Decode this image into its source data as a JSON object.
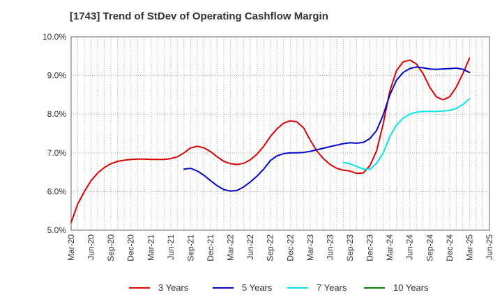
{
  "title": "[1743]  Trend of StDev of Operating Cashflow Margin",
  "chart_data": {
    "type": "line",
    "title": "[1743]  Trend of StDev of Operating Cashflow Margin",
    "xlabel": "",
    "ylabel": "",
    "x_ticks": [
      "Mar-20",
      "Jun-20",
      "Sep-20",
      "Dec-20",
      "Mar-21",
      "Jun-21",
      "Sep-21",
      "Dec-21",
      "Mar-22",
      "Jun-22",
      "Sep-22",
      "Dec-22",
      "Mar-23",
      "Jun-23",
      "Sep-23",
      "Dec-23",
      "Mar-24",
      "Jun-24",
      "Sep-24",
      "Dec-24",
      "Mar-25",
      "Jun-25"
    ],
    "y_ticks": [
      "5.0%",
      "6.0%",
      "7.0%",
      "8.0%",
      "9.0%",
      "10.0%"
    ],
    "ylim": [
      5.0,
      10.0
    ],
    "grid": true,
    "legend_position": "bottom",
    "series": [
      {
        "name": "3 Years",
        "color": "#dd0000",
        "points": [
          [
            "Mar-20",
            5.2
          ],
          [
            "Apr-20",
            5.68
          ],
          [
            "May-20",
            6.0
          ],
          [
            "Jun-20",
            6.28
          ],
          [
            "Jul-20",
            6.48
          ],
          [
            "Aug-20",
            6.62
          ],
          [
            "Sep-20",
            6.72
          ],
          [
            "Oct-20",
            6.78
          ],
          [
            "Nov-20",
            6.81
          ],
          [
            "Dec-20",
            6.83
          ],
          [
            "Jan-21",
            6.84
          ],
          [
            "Feb-21",
            6.84
          ],
          [
            "Mar-21",
            6.83
          ],
          [
            "Apr-21",
            6.83
          ],
          [
            "May-21",
            6.83
          ],
          [
            "Jun-21",
            6.85
          ],
          [
            "Jul-21",
            6.9
          ],
          [
            "Aug-21",
            7.0
          ],
          [
            "Sep-21",
            7.13
          ],
          [
            "Oct-21",
            7.17
          ],
          [
            "Nov-21",
            7.13
          ],
          [
            "Dec-21",
            7.03
          ],
          [
            "Jan-22",
            6.9
          ],
          [
            "Feb-22",
            6.78
          ],
          [
            "Mar-22",
            6.72
          ],
          [
            "Apr-22",
            6.7
          ],
          [
            "May-22",
            6.73
          ],
          [
            "Jun-22",
            6.82
          ],
          [
            "Jul-22",
            6.97
          ],
          [
            "Aug-22",
            7.17
          ],
          [
            "Sep-22",
            7.42
          ],
          [
            "Oct-22",
            7.62
          ],
          [
            "Nov-22",
            7.77
          ],
          [
            "Dec-22",
            7.83
          ],
          [
            "Jan-23",
            7.8
          ],
          [
            "Feb-23",
            7.65
          ],
          [
            "Mar-23",
            7.33
          ],
          [
            "Apr-23",
            7.05
          ],
          [
            "May-23",
            6.85
          ],
          [
            "Jun-23",
            6.7
          ],
          [
            "Jul-23",
            6.6
          ],
          [
            "Aug-23",
            6.55
          ],
          [
            "Sep-23",
            6.53
          ],
          [
            "Oct-23",
            6.47
          ],
          [
            "Nov-23",
            6.48
          ],
          [
            "Dec-23",
            6.67
          ],
          [
            "Jan-24",
            7.05
          ],
          [
            "Feb-24",
            7.75
          ],
          [
            "Mar-24",
            8.6
          ],
          [
            "Apr-24",
            9.13
          ],
          [
            "May-24",
            9.35
          ],
          [
            "Jun-24",
            9.4
          ],
          [
            "Jul-24",
            9.3
          ],
          [
            "Aug-24",
            9.05
          ],
          [
            "Sep-24",
            8.7
          ],
          [
            "Oct-24",
            8.45
          ],
          [
            "Nov-24",
            8.37
          ],
          [
            "Dec-24",
            8.45
          ],
          [
            "Jan-25",
            8.7
          ],
          [
            "Feb-25",
            9.05
          ],
          [
            "Mar-25",
            9.45
          ]
        ]
      },
      {
        "name": "5 Years",
        "color": "#0000cc",
        "points": [
          [
            "Aug-21",
            6.58
          ],
          [
            "Sep-21",
            6.6
          ],
          [
            "Oct-21",
            6.53
          ],
          [
            "Nov-21",
            6.42
          ],
          [
            "Dec-21",
            6.28
          ],
          [
            "Jan-22",
            6.15
          ],
          [
            "Feb-22",
            6.05
          ],
          [
            "Mar-22",
            6.01
          ],
          [
            "Apr-22",
            6.03
          ],
          [
            "May-22",
            6.12
          ],
          [
            "Jun-22",
            6.25
          ],
          [
            "Jul-22",
            6.4
          ],
          [
            "Aug-22",
            6.58
          ],
          [
            "Sep-22",
            6.8
          ],
          [
            "Oct-22",
            6.92
          ],
          [
            "Nov-22",
            6.98
          ],
          [
            "Dec-22",
            7.0
          ],
          [
            "Jan-23",
            7.0
          ],
          [
            "Feb-23",
            7.01
          ],
          [
            "Mar-23",
            7.04
          ],
          [
            "Apr-23",
            7.08
          ],
          [
            "May-23",
            7.12
          ],
          [
            "Jun-23",
            7.16
          ],
          [
            "Jul-23",
            7.2
          ],
          [
            "Aug-23",
            7.24
          ],
          [
            "Sep-23",
            7.26
          ],
          [
            "Oct-23",
            7.25
          ],
          [
            "Nov-23",
            7.27
          ],
          [
            "Dec-23",
            7.37
          ],
          [
            "Jan-24",
            7.58
          ],
          [
            "Feb-24",
            7.98
          ],
          [
            "Mar-24",
            8.5
          ],
          [
            "Apr-24",
            8.88
          ],
          [
            "May-24",
            9.08
          ],
          [
            "Jun-24",
            9.18
          ],
          [
            "Jul-24",
            9.22
          ],
          [
            "Aug-24",
            9.2
          ],
          [
            "Sep-24",
            9.17
          ],
          [
            "Oct-24",
            9.16
          ],
          [
            "Nov-24",
            9.17
          ],
          [
            "Dec-24",
            9.18
          ],
          [
            "Jan-25",
            9.19
          ],
          [
            "Feb-25",
            9.16
          ],
          [
            "Mar-25",
            9.08
          ]
        ]
      },
      {
        "name": "7 Years",
        "color": "#00e5ee",
        "points": [
          [
            "Aug-23",
            6.75
          ],
          [
            "Sep-23",
            6.72
          ],
          [
            "Oct-23",
            6.65
          ],
          [
            "Nov-23",
            6.58
          ],
          [
            "Dec-23",
            6.58
          ],
          [
            "Jan-24",
            6.73
          ],
          [
            "Feb-24",
            7.0
          ],
          [
            "Mar-24",
            7.42
          ],
          [
            "Apr-24",
            7.72
          ],
          [
            "May-24",
            7.9
          ],
          [
            "Jun-24",
            8.0
          ],
          [
            "Jul-24",
            8.05
          ],
          [
            "Aug-24",
            8.07
          ],
          [
            "Sep-24",
            8.07
          ],
          [
            "Oct-24",
            8.07
          ],
          [
            "Nov-24",
            8.08
          ],
          [
            "Dec-24",
            8.1
          ],
          [
            "Jan-25",
            8.15
          ],
          [
            "Feb-25",
            8.25
          ],
          [
            "Mar-25",
            8.4
          ]
        ]
      },
      {
        "name": "10 Years",
        "color": "#008000",
        "points": []
      }
    ]
  }
}
